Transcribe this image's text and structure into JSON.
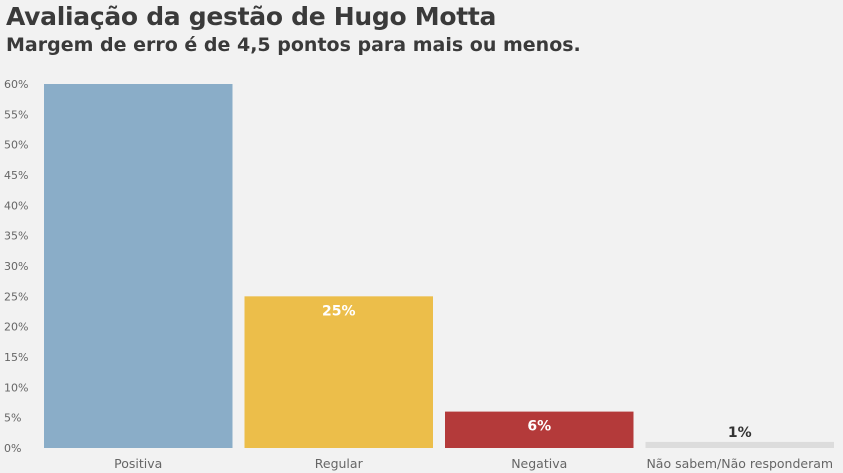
{
  "chart_data": {
    "type": "bar",
    "title": "Avaliação da gestão de Hugo Motta",
    "subtitle": "Margem de erro é de 4,5 pontos para mais ou menos.",
    "categories": [
      "Positiva",
      "Regular",
      "Negativa",
      "Não sabem/Não responderam"
    ],
    "values": [
      60,
      25,
      6,
      1
    ],
    "data_labels": [
      "",
      "25%",
      "6%",
      "1%"
    ],
    "colors": [
      "#8aadc8",
      "#ecbe4a",
      "#b43a3a",
      "#dcdcdc"
    ],
    "label_colors": [
      "#ffffff",
      "#ffffff",
      "#ffffff",
      "#333333"
    ],
    "ylim": [
      0,
      60
    ],
    "yticks": [
      0,
      5,
      10,
      15,
      20,
      25,
      30,
      35,
      40,
      45,
      50,
      55,
      60
    ],
    "ytick_labels": [
      "0%",
      "5%",
      "10%",
      "15%",
      "20%",
      "25%",
      "30%",
      "35%",
      "40%",
      "45%",
      "50%",
      "55%",
      "60%"
    ],
    "grid": false
  }
}
